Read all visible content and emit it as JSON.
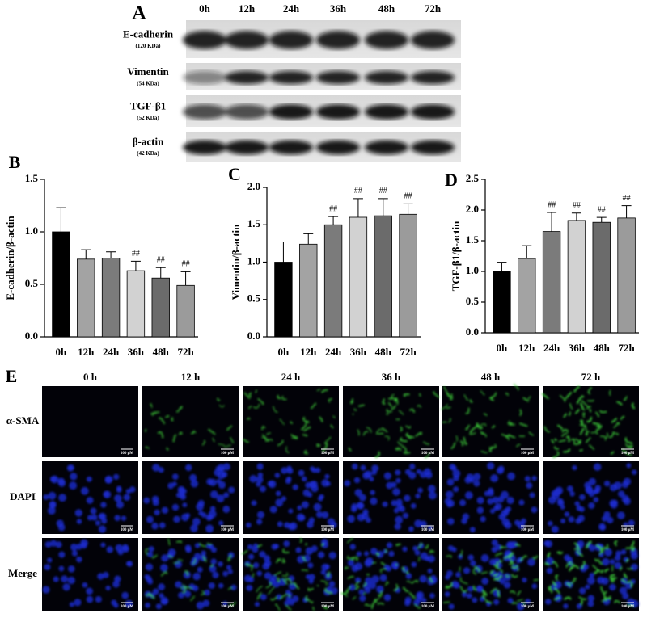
{
  "panel_a": {
    "label": "A",
    "lanes": [
      "0h",
      "12h",
      "24h",
      "36h",
      "48h",
      "72h"
    ],
    "proteins": [
      {
        "name": "E-cadherin",
        "size": "(120 KDa)"
      },
      {
        "name": "Vimentin",
        "size": "(54 KDa)"
      },
      {
        "name": "TGF-β1",
        "size": "(52 KDa)"
      },
      {
        "name": "β-actin",
        "size": "(42 KDa)"
      }
    ]
  },
  "chart_data": [
    {
      "type": "bar",
      "panel_label": "B",
      "ylabel": "E-cadherin/β-actin",
      "categories": [
        "0h",
        "12h",
        "24h",
        "36h",
        "48h",
        "72h"
      ],
      "values": [
        1.0,
        0.74,
        0.75,
        0.63,
        0.56,
        0.49
      ],
      "errors": [
        0.23,
        0.09,
        0.06,
        0.09,
        0.1,
        0.13
      ],
      "annotations": [
        null,
        null,
        null,
        "##",
        "##",
        "##"
      ],
      "colors": [
        "#000000",
        "#a3a3a3",
        "#7b7b7b",
        "#d2d2d2",
        "#6b6b6b",
        "#9b9b9b"
      ],
      "ylim": [
        0,
        1.5
      ],
      "yticks": [
        {
          "value": 0,
          "label": "0.0"
        },
        0.5,
        {
          "value": 1,
          "label": "1.0"
        },
        1.5
      ]
    },
    {
      "type": "bar",
      "panel_label": "C",
      "ylabel": "Vimentin/β-actin",
      "categories": [
        "0h",
        "12h",
        "24h",
        "36h",
        "48h",
        "72h"
      ],
      "values": [
        1.0,
        1.24,
        1.5,
        1.6,
        1.62,
        1.64
      ],
      "errors": [
        0.27,
        0.14,
        0.11,
        0.25,
        0.23,
        0.14
      ],
      "annotations": [
        null,
        null,
        "##",
        "##",
        "##",
        "##"
      ],
      "colors": [
        "#000000",
        "#a3a3a3",
        "#7b7b7b",
        "#d2d2d2",
        "#6b6b6b",
        "#9b9b9b"
      ],
      "ylim": [
        0,
        2
      ],
      "yticks": [
        {
          "value": 0,
          "label": "0.0"
        },
        0.5,
        {
          "value": 1,
          "label": "1.0"
        },
        1.5,
        {
          "value": 2,
          "label": "2.0"
        }
      ]
    },
    {
      "type": "bar",
      "panel_label": "D",
      "ylabel": "TGF-β1/β-actin",
      "categories": [
        "0h",
        "12h",
        "24h",
        "36h",
        "48h",
        "72h"
      ],
      "values": [
        1.0,
        1.21,
        1.65,
        1.83,
        1.8,
        1.87
      ],
      "errors": [
        0.15,
        0.21,
        0.31,
        0.12,
        0.08,
        0.2
      ],
      "annotations": [
        null,
        null,
        "##",
        "##",
        "##",
        "##"
      ],
      "colors": [
        "#000000",
        "#a3a3a3",
        "#7b7b7b",
        "#d2d2d2",
        "#6b6b6b",
        "#9b9b9b"
      ],
      "ylim": [
        0,
        2.5
      ],
      "yticks": [
        {
          "value": 0,
          "label": "0.0"
        },
        0.5,
        {
          "value": 1,
          "label": "1.0"
        },
        1.5,
        {
          "value": 2,
          "label": "2.0"
        },
        2.5
      ]
    }
  ],
  "panel_e": {
    "label": "E",
    "columns": [
      "0 h",
      "12 h",
      "24 h",
      "36 h",
      "48 h",
      "72 h"
    ],
    "rows": [
      "α-SMA",
      "DAPI",
      "Merge"
    ],
    "scale_label": "100 μM"
  }
}
